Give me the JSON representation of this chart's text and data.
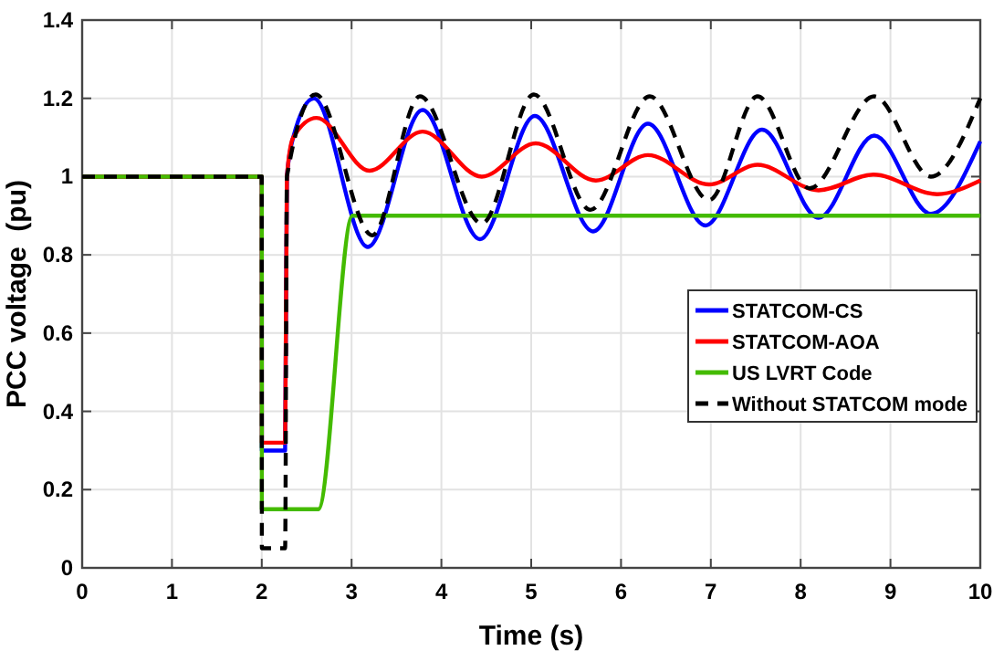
{
  "chart_data": {
    "type": "line",
    "xlabel": "Time (s)",
    "ylabel": "PCC voltage  (pu)",
    "xlim": [
      0,
      10
    ],
    "ylim": [
      0,
      1.4
    ],
    "xticks": [
      0,
      1,
      2,
      3,
      4,
      5,
      6,
      7,
      8,
      9,
      10
    ],
    "yticks": [
      0,
      {
        "value": 0.2,
        "label": "0.2"
      },
      {
        "value": 0.4,
        "label": "0.4"
      },
      {
        "value": 0.6,
        "label": "0.6"
      },
      {
        "value": 0.8,
        "label": "0.8"
      },
      1,
      {
        "value": 1.2,
        "label": "1.2"
      },
      {
        "value": 1.4,
        "label": "1.4"
      }
    ],
    "grid": true,
    "legend": "bottom right",
    "marker": "none",
    "series": [
      {
        "name": "STATCOM-CS",
        "color": "#0000ff",
        "line_style": "solid",
        "x": [
          0,
          2,
          2.001,
          2.26,
          2.28,
          2.35,
          2.58,
          3.18,
          3.79,
          4.43,
          5.04,
          5.69,
          6.3,
          6.94,
          7.57,
          8.2,
          8.82,
          9.45,
          10
        ],
        "values": [
          1,
          1,
          0.3,
          0.3,
          1.0,
          1.1,
          1.2,
          0.82,
          1.17,
          0.84,
          1.155,
          0.86,
          1.135,
          0.875,
          1.12,
          0.895,
          1.105,
          0.905,
          1.09
        ]
      },
      {
        "name": "STATCOM-AOA",
        "color": "#ff0000",
        "line_style": "solid",
        "x": [
          0,
          2,
          2.001,
          2.26,
          2.28,
          2.35,
          2.61,
          3.2,
          3.79,
          4.45,
          5.05,
          5.72,
          6.3,
          6.98,
          7.52,
          8.2,
          8.81,
          9.52,
          10
        ],
        "values": [
          1,
          1,
          0.32,
          0.32,
          1.0,
          1.1,
          1.15,
          1.015,
          1.115,
          1.0,
          1.085,
          0.99,
          1.055,
          0.98,
          1.03,
          0.965,
          1.005,
          0.955,
          0.99
        ]
      },
      {
        "name": "US LVRT Code",
        "color": "#44bb00",
        "line_style": "solid",
        "x": [
          0,
          2,
          2.001,
          2.63,
          3.01,
          10
        ],
        "values": [
          1,
          1,
          0.15,
          0.15,
          0.9,
          0.9
        ]
      },
      {
        "name": "Without STATCOM mode",
        "color": "#000000",
        "line_style": "dashed",
        "x": [
          0,
          2,
          2.001,
          2.26,
          2.28,
          2.6,
          3.23,
          3.76,
          4.45,
          5.03,
          5.66,
          6.32,
          6.98,
          7.52,
          8.1,
          8.82,
          9.45,
          10
        ],
        "values": [
          1,
          1,
          0.05,
          0.05,
          1.0,
          1.21,
          0.85,
          1.205,
          0.88,
          1.21,
          0.915,
          1.205,
          0.94,
          1.205,
          0.97,
          1.205,
          1.0,
          1.2
        ]
      }
    ]
  }
}
